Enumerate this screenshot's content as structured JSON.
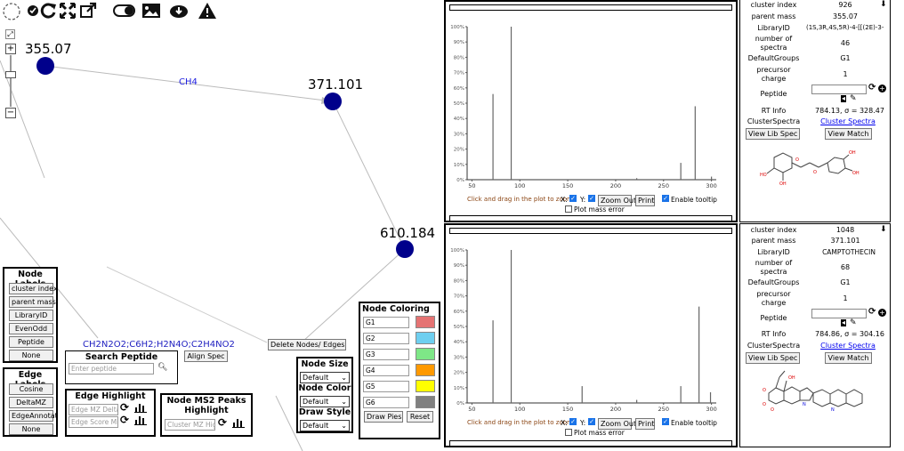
{
  "network": {
    "nodes": [
      {
        "id": "n1",
        "label": "355.07"
      },
      {
        "id": "n2",
        "label": "371.101"
      },
      {
        "id": "n3",
        "label": "610.184"
      }
    ],
    "edge_label": "CH4",
    "edge_label_2": "CH2N2O2;C6H2;H2N4O;C2H4NO2",
    "node_color": "#00008b"
  },
  "node_labels_panel": {
    "title": "Node Labels",
    "buttons": [
      "cluster index",
      "parent mass",
      "LibraryID",
      "EvenOdd",
      "Peptide",
      "None"
    ]
  },
  "edge_labels_panel": {
    "title": "Edge Labels",
    "buttons": [
      "Cosine",
      "DeltaMZ",
      "EdgeAnnotat",
      "None"
    ]
  },
  "search_peptide": {
    "title": "Search Peptide",
    "placeholder": "Enter peptide"
  },
  "align_spec": "Align Spec",
  "delete_nodes": "Delete Nodes/ Edges",
  "edge_highlight": {
    "title": "Edge Highlight",
    "placeholder1": "Edge MZ Delta",
    "placeholder2": "Edge Score Mi"
  },
  "node_ms2": {
    "title": "Node MS2 Peaks Highlight",
    "placeholder": "Cluster MZ Hig"
  },
  "node_size": {
    "title": "Node Size",
    "value": "Default"
  },
  "node_color": {
    "title": "Node Color",
    "value": "Default"
  },
  "draw_style": {
    "title": "Draw Style",
    "value": "Default"
  },
  "node_coloring": {
    "title": "Node Coloring",
    "groups": [
      {
        "label": "G1",
        "color": "#e57373"
      },
      {
        "label": "G2",
        "color": "#6ecff0"
      },
      {
        "label": "G3",
        "color": "#7ee787"
      },
      {
        "label": "G4",
        "color": "#ff9900"
      },
      {
        "label": "G5",
        "color": "#ffff00"
      },
      {
        "label": "G6",
        "color": "#808080"
      }
    ],
    "draw_pies": "Draw Pies",
    "reset": "Reset"
  },
  "spectra": [
    {
      "chart_data": {
        "type": "bar",
        "x": [
          72,
          91,
          222,
          268,
          283,
          300
        ],
        "values": [
          56,
          100,
          1,
          11,
          48,
          2
        ],
        "xlim": [
          45,
          305
        ],
        "ylim": [
          0,
          100
        ],
        "xticks": [
          "50",
          "100",
          "150",
          "200",
          "250",
          "300"
        ],
        "yticks": [
          "0%",
          "10%",
          "20%",
          "30%",
          "40%",
          "50%",
          "60%",
          "70%",
          "80%",
          "90%",
          "100%"
        ]
      },
      "controls": {
        "hint": "Click and drag in the plot to zoom",
        "x_label": "X:",
        "y_label": "Y:",
        "zoom_out": "Zoom Out",
        "print": "Print",
        "enable_tooltip": "Enable tooltip",
        "plot_mass_error": "Plot mass error"
      },
      "info": {
        "cluster_index_label": "cluster index",
        "cluster_index": "926",
        "parent_mass_label": "parent mass",
        "parent_mass": "355.07",
        "library_id_label": "LibraryID",
        "library_id": "(1S,3R,4S,5R)-4-[[(2E)-3-",
        "num_spectra_label": "number of spectra",
        "num_spectra": "46",
        "default_groups_label": "DefaultGroups",
        "default_groups": "G1",
        "precursor_charge_label": "precursor charge",
        "precursor_charge": "1",
        "peptide_label": "Peptide",
        "rt_info_label": "RT Info",
        "rt_info": "784.13, σ = 328.47",
        "cluster_spectra_label": "ClusterSpectra",
        "cluster_spectra": "Cluster Spectra",
        "view_lib_spec": "View Lib Spec",
        "view_match": "View Match"
      }
    },
    {
      "chart_data": {
        "type": "bar",
        "x": [
          72,
          91,
          165,
          222,
          268,
          287,
          299
        ],
        "values": [
          54,
          100,
          11,
          2,
          11,
          63,
          7
        ],
        "xlim": [
          45,
          305
        ],
        "ylim": [
          0,
          100
        ],
        "xticks": [
          "50",
          "100",
          "150",
          "200",
          "250",
          "300"
        ],
        "yticks": [
          "0%",
          "10%",
          "20%",
          "30%",
          "40%",
          "50%",
          "60%",
          "70%",
          "80%",
          "90%",
          "100%"
        ]
      },
      "controls": {
        "hint": "Click and drag in the plot to zoom",
        "x_label": "X:",
        "y_label": "Y:",
        "zoom_out": "Zoom Out",
        "print": "Print",
        "enable_tooltip": "Enable tooltip",
        "plot_mass_error": "Plot mass error"
      },
      "info": {
        "cluster_index_label": "cluster index",
        "cluster_index": "1048",
        "parent_mass_label": "parent mass",
        "parent_mass": "371.101",
        "library_id_label": "LibraryID",
        "library_id": "CAMPTOTHECIN",
        "num_spectra_label": "number of spectra",
        "num_spectra": "68",
        "default_groups_label": "DefaultGroups",
        "default_groups": "G1",
        "precursor_charge_label": "precursor charge",
        "precursor_charge": "1",
        "peptide_label": "Peptide",
        "rt_info_label": "RT Info",
        "rt_info": "784.86, σ = 304.16",
        "cluster_spectra_label": "ClusterSpectra",
        "cluster_spectra": "Cluster Spectra",
        "view_lib_spec": "View Lib Spec",
        "view_match": "View Match"
      }
    }
  ]
}
